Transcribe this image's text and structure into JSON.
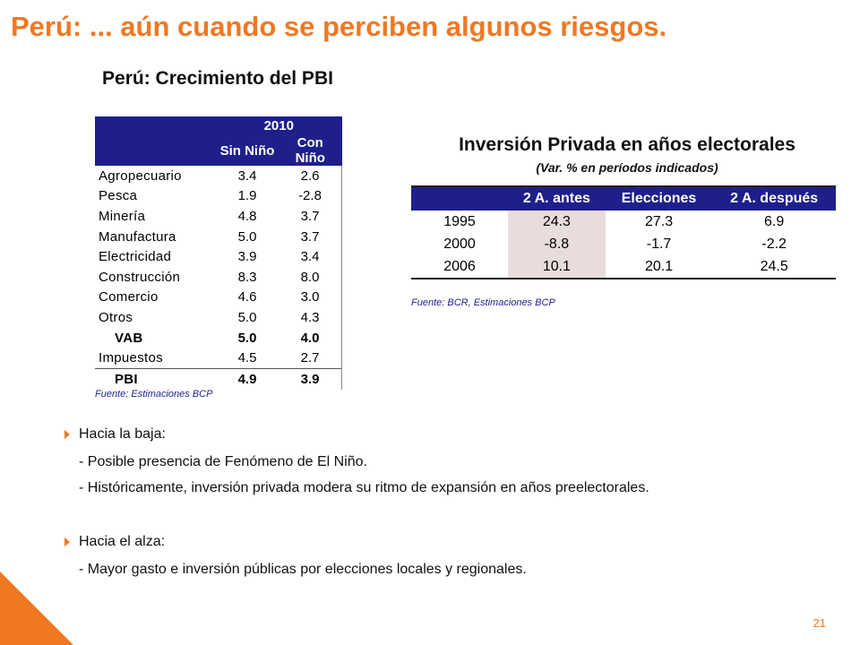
{
  "slide": {
    "title": "Perú: ... aún cuando se perciben algunos riesgos.",
    "page_number": "21",
    "accent": "#f07822",
    "table_header_bg": "#1f1f8c"
  },
  "pbi": {
    "title": "Perú: Crecimiento del PBI",
    "header_year": "2010",
    "col1": "Sin Niño",
    "col2": "Con Niño",
    "rows": [
      {
        "label": "Agropecuario",
        "sin": "3.4",
        "con": "2.6"
      },
      {
        "label": "Pesca",
        "sin": "1.9",
        "con": "-2.8"
      },
      {
        "label": "Minería",
        "sin": "4.8",
        "con": "3.7"
      },
      {
        "label": "Manufactura",
        "sin": "5.0",
        "con": "3.7"
      },
      {
        "label": "Electricidad",
        "sin": "3.9",
        "con": "3.4"
      },
      {
        "label": "Construcción",
        "sin": "8.3",
        "con": "8.0"
      },
      {
        "label": "Comercio",
        "sin": "4.6",
        "con": "3.0"
      },
      {
        "label": "Otros",
        "sin": "5.0",
        "con": "4.3"
      },
      {
        "label": "VAB",
        "sin": "5.0",
        "con": "4.0"
      },
      {
        "label": "Impuestos",
        "sin": "4.5",
        "con": "2.7"
      },
      {
        "label": "PBI",
        "sin": "4.9",
        "con": "3.9"
      }
    ],
    "source": "Fuente: Estimaciones BCP"
  },
  "inversion": {
    "title": "Inversión Privada en años electorales",
    "subtitle": "(Var. % en períodos indicados)",
    "headers": [
      "",
      "2 A. antes",
      "Elecciones",
      "2 A. después"
    ],
    "rows": [
      {
        "year": "1995",
        "antes": "24.3",
        "elecciones": "27.3",
        "despues": "6.9"
      },
      {
        "year": "2000",
        "antes": "-8.8",
        "elecciones": "-1.7",
        "despues": "-2.2"
      },
      {
        "year": "2006",
        "antes": "10.1",
        "elecciones": "20.1",
        "despues": "24.5"
      }
    ],
    "source": "Fuente: BCR, Estimaciones BCP"
  },
  "bullets": {
    "baja_head": "Hacia la baja:",
    "baja_items": [
      "- Posible presencia de Fenómeno de El Niño.",
      "- Históricamente, inversión privada modera su ritmo de expansión en años preelectorales."
    ],
    "alza_head": "Hacia el alza:",
    "alza_items": [
      "- Mayor gasto e inversión públicas por elecciones locales y regionales."
    ]
  }
}
